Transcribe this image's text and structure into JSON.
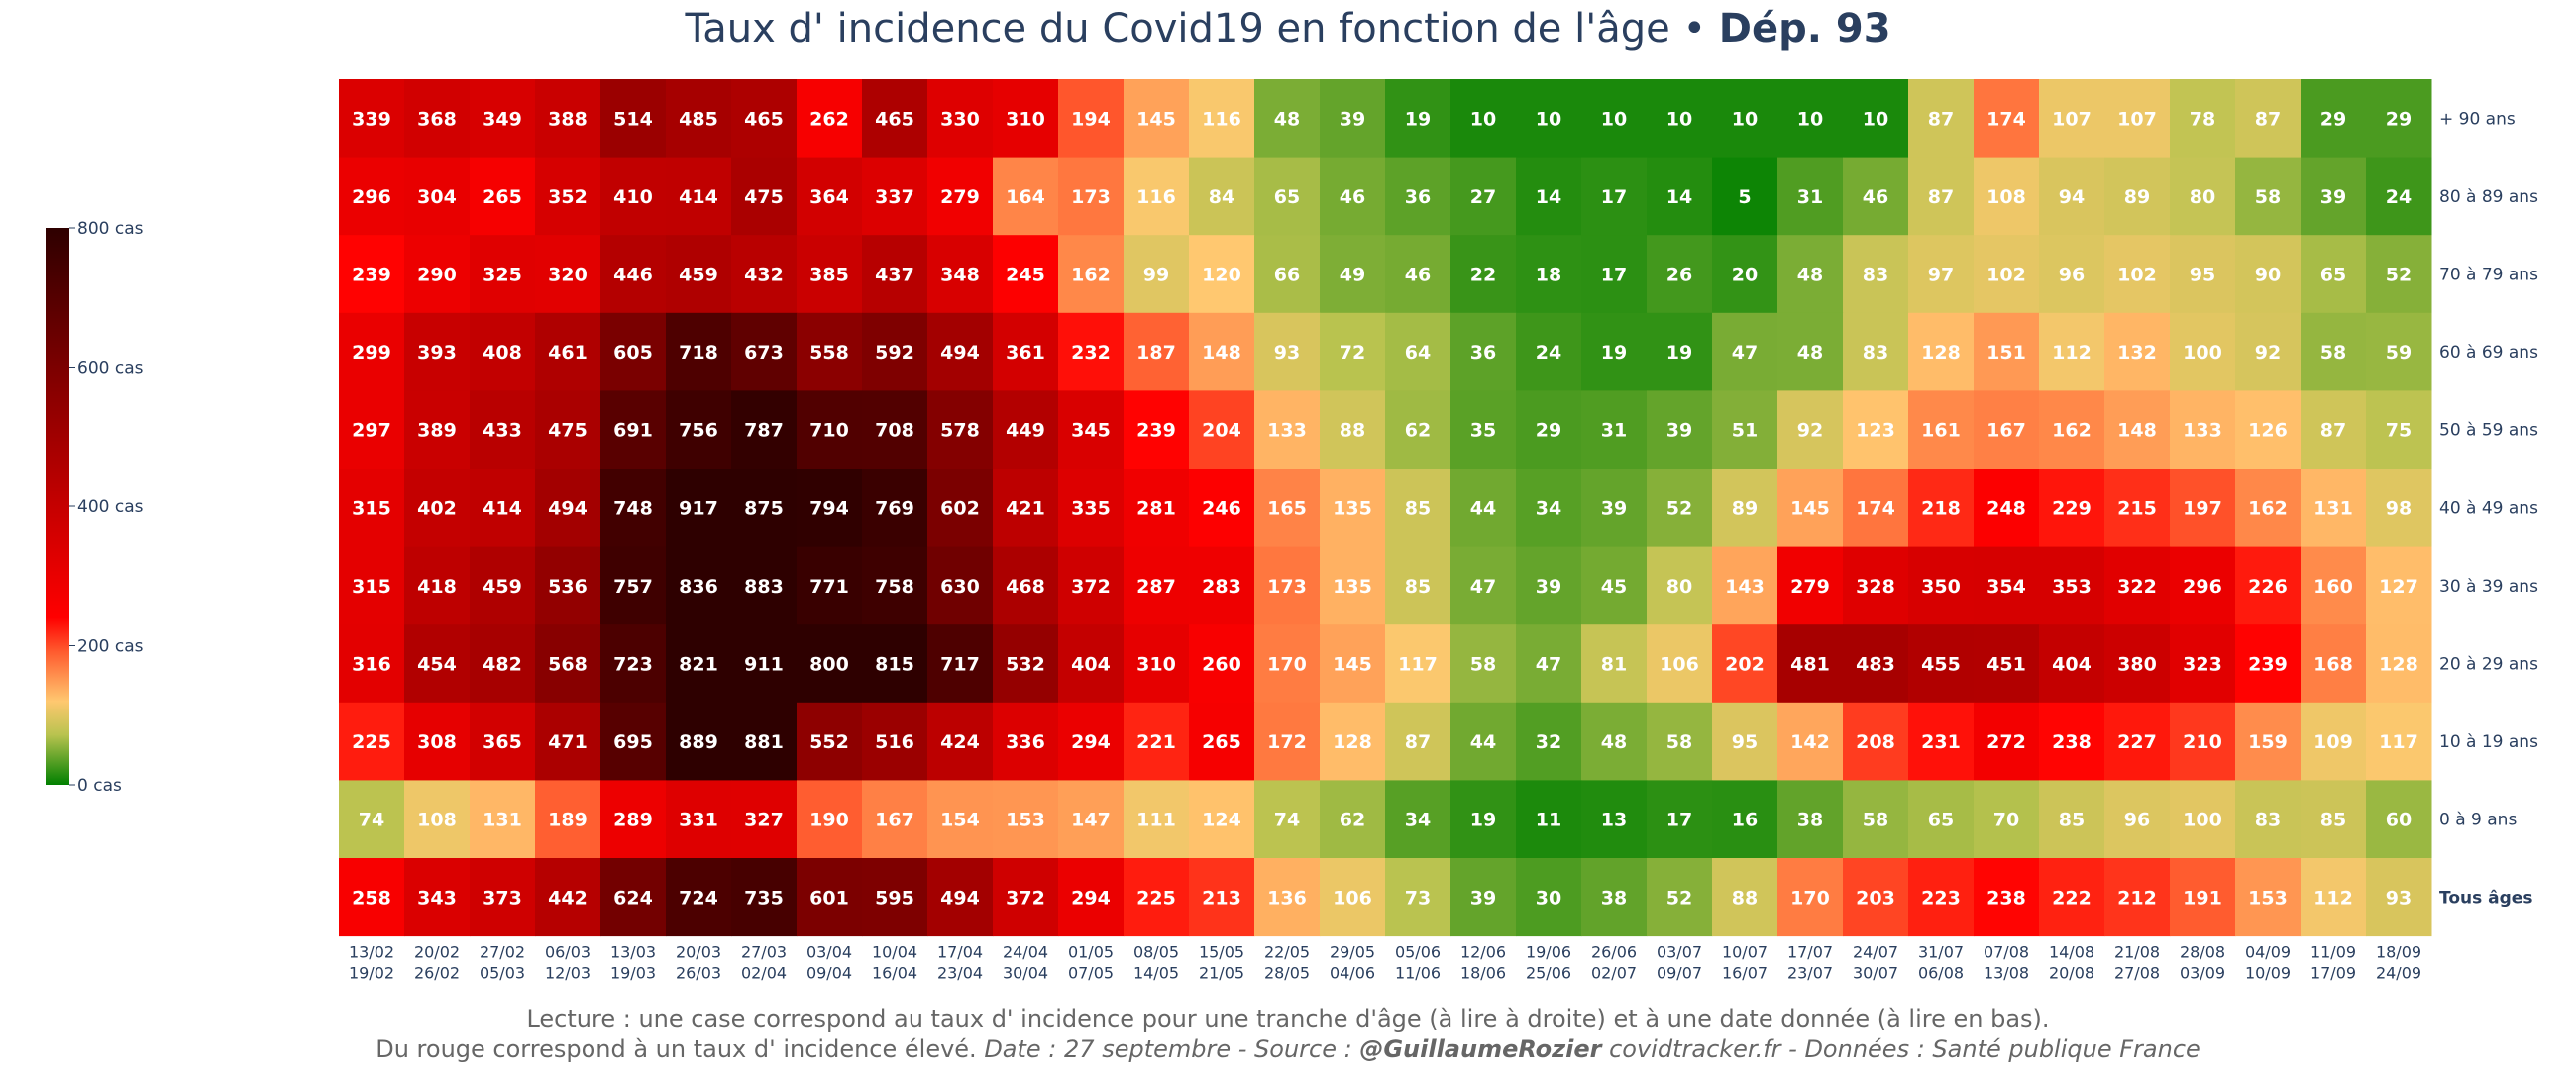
{
  "title": {
    "main": "Taux d' incidence du Covid19 en fonction de l'âge • ",
    "bold": "Dép. 93"
  },
  "footer": {
    "line1": "Lecture : une case correspond au taux d' incidence pour une tranche d'âge (à lire à droite) et à une date donnée (à lire en bas).",
    "line2_plain": "Du rouge correspond à un taux d' incidence élevé.  ",
    "line2_date_source": "Date : 27 septembre - Source : ",
    "line2_author": "@GuillaumeRozier",
    "line2_rest": " covidtracker.fr - Données : Santé publique France"
  },
  "chart_data": {
    "type": "heatmap",
    "x": [
      [
        "13/02",
        "19/02"
      ],
      [
        "20/02",
        "26/02"
      ],
      [
        "27/02",
        "05/03"
      ],
      [
        "06/03",
        "12/03"
      ],
      [
        "13/03",
        "19/03"
      ],
      [
        "20/03",
        "26/03"
      ],
      [
        "27/03",
        "02/04"
      ],
      [
        "03/04",
        "09/04"
      ],
      [
        "10/04",
        "16/04"
      ],
      [
        "17/04",
        "23/04"
      ],
      [
        "24/04",
        "30/04"
      ],
      [
        "01/05",
        "07/05"
      ],
      [
        "08/05",
        "14/05"
      ],
      [
        "15/05",
        "21/05"
      ],
      [
        "22/05",
        "28/05"
      ],
      [
        "29/05",
        "04/06"
      ],
      [
        "05/06",
        "11/06"
      ],
      [
        "12/06",
        "18/06"
      ],
      [
        "19/06",
        "25/06"
      ],
      [
        "26/06",
        "02/07"
      ],
      [
        "03/07",
        "09/07"
      ],
      [
        "10/07",
        "16/07"
      ],
      [
        "17/07",
        "23/07"
      ],
      [
        "24/07",
        "30/07"
      ],
      [
        "31/07",
        "06/08"
      ],
      [
        "07/08",
        "13/08"
      ],
      [
        "14/08",
        "20/08"
      ],
      [
        "21/08",
        "27/08"
      ],
      [
        "28/08",
        "03/09"
      ],
      [
        "04/09",
        "10/09"
      ],
      [
        "11/09",
        "17/09"
      ],
      [
        "18/09",
        "24/09"
      ]
    ],
    "rows": [
      {
        "label": "+ 90 ans",
        "bold": false,
        "values": [
          339,
          368,
          349,
          388,
          514,
          485,
          465,
          262,
          465,
          330,
          310,
          194,
          145,
          116,
          48,
          39,
          19,
          10,
          10,
          10,
          10,
          10,
          10,
          10,
          87,
          174,
          107,
          107,
          78,
          87,
          29,
          29
        ]
      },
      {
        "label": "80 à 89 ans",
        "bold": false,
        "values": [
          296,
          304,
          265,
          352,
          410,
          414,
          475,
          364,
          337,
          279,
          164,
          173,
          116,
          84,
          65,
          46,
          36,
          27,
          14,
          17,
          14,
          5,
          31,
          46,
          87,
          108,
          94,
          89,
          80,
          58,
          39,
          24
        ]
      },
      {
        "label": "70 à 79 ans",
        "bold": false,
        "values": [
          239,
          290,
          325,
          320,
          446,
          459,
          432,
          385,
          437,
          348,
          245,
          162,
          99,
          120,
          66,
          49,
          46,
          22,
          18,
          17,
          26,
          20,
          48,
          83,
          97,
          102,
          96,
          102,
          95,
          90,
          65,
          52
        ]
      },
      {
        "label": "60 à 69 ans",
        "bold": false,
        "values": [
          299,
          393,
          408,
          461,
          605,
          718,
          673,
          558,
          592,
          494,
          361,
          232,
          187,
          148,
          93,
          72,
          64,
          36,
          24,
          19,
          19,
          47,
          48,
          83,
          128,
          151,
          112,
          132,
          100,
          92,
          58,
          59
        ]
      },
      {
        "label": "50 à 59 ans",
        "bold": false,
        "values": [
          297,
          389,
          433,
          475,
          691,
          756,
          787,
          710,
          708,
          578,
          449,
          345,
          239,
          204,
          133,
          88,
          62,
          35,
          29,
          31,
          39,
          51,
          92,
          123,
          161,
          167,
          162,
          148,
          133,
          126,
          87,
          75
        ]
      },
      {
        "label": "40 à 49 ans",
        "bold": false,
        "values": [
          315,
          402,
          414,
          494,
          748,
          917,
          875,
          794,
          769,
          602,
          421,
          335,
          281,
          246,
          165,
          135,
          85,
          44,
          34,
          39,
          52,
          89,
          145,
          174,
          218,
          248,
          229,
          215,
          197,
          162,
          131,
          98
        ]
      },
      {
        "label": "30 à 39 ans",
        "bold": false,
        "values": [
          315,
          418,
          459,
          536,
          757,
          836,
          883,
          771,
          758,
          630,
          468,
          372,
          287,
          283,
          173,
          135,
          85,
          47,
          39,
          45,
          80,
          143,
          279,
          328,
          350,
          354,
          353,
          322,
          296,
          226,
          160,
          127
        ]
      },
      {
        "label": "20 à 29 ans",
        "bold": false,
        "values": [
          316,
          454,
          482,
          568,
          723,
          821,
          911,
          800,
          815,
          717,
          532,
          404,
          310,
          260,
          170,
          145,
          117,
          58,
          47,
          81,
          106,
          202,
          481,
          483,
          455,
          451,
          404,
          380,
          323,
          239,
          168,
          128
        ]
      },
      {
        "label": "10 à 19 ans",
        "bold": false,
        "values": [
          225,
          308,
          365,
          471,
          695,
          889,
          881,
          552,
          516,
          424,
          336,
          294,
          221,
          265,
          172,
          128,
          87,
          44,
          32,
          48,
          58,
          95,
          142,
          208,
          231,
          272,
          238,
          227,
          210,
          159,
          109,
          117
        ]
      },
      {
        "label": "0 à 9 ans",
        "bold": false,
        "values": [
          74,
          108,
          131,
          189,
          289,
          331,
          327,
          190,
          167,
          154,
          153,
          147,
          111,
          124,
          74,
          62,
          34,
          19,
          11,
          13,
          17,
          16,
          38,
          58,
          65,
          70,
          85,
          96,
          100,
          83,
          85,
          60
        ]
      },
      {
        "label": "Tous âges",
        "bold": true,
        "values": [
          258,
          343,
          373,
          442,
          624,
          724,
          735,
          601,
          595,
          494,
          372,
          294,
          225,
          213,
          136,
          106,
          73,
          39,
          30,
          38,
          52,
          88,
          170,
          203,
          223,
          238,
          222,
          212,
          191,
          153,
          112,
          93
        ]
      }
    ],
    "zrange": [
      0,
      800
    ],
    "colorscale": [
      [
        0,
        "#008000"
      ],
      [
        0.09,
        "#b9c34f"
      ],
      [
        0.15,
        "#ffc870"
      ],
      [
        0.24,
        "#ff5a2e"
      ],
      [
        0.3,
        "#ff0000"
      ],
      [
        0.5,
        "#c50000"
      ],
      [
        0.75,
        "#7c0000"
      ],
      [
        1,
        "#2e0000"
      ]
    ],
    "colorbar": {
      "ticks": [
        0,
        200,
        400,
        600,
        800
      ],
      "suffix": " cas"
    }
  }
}
